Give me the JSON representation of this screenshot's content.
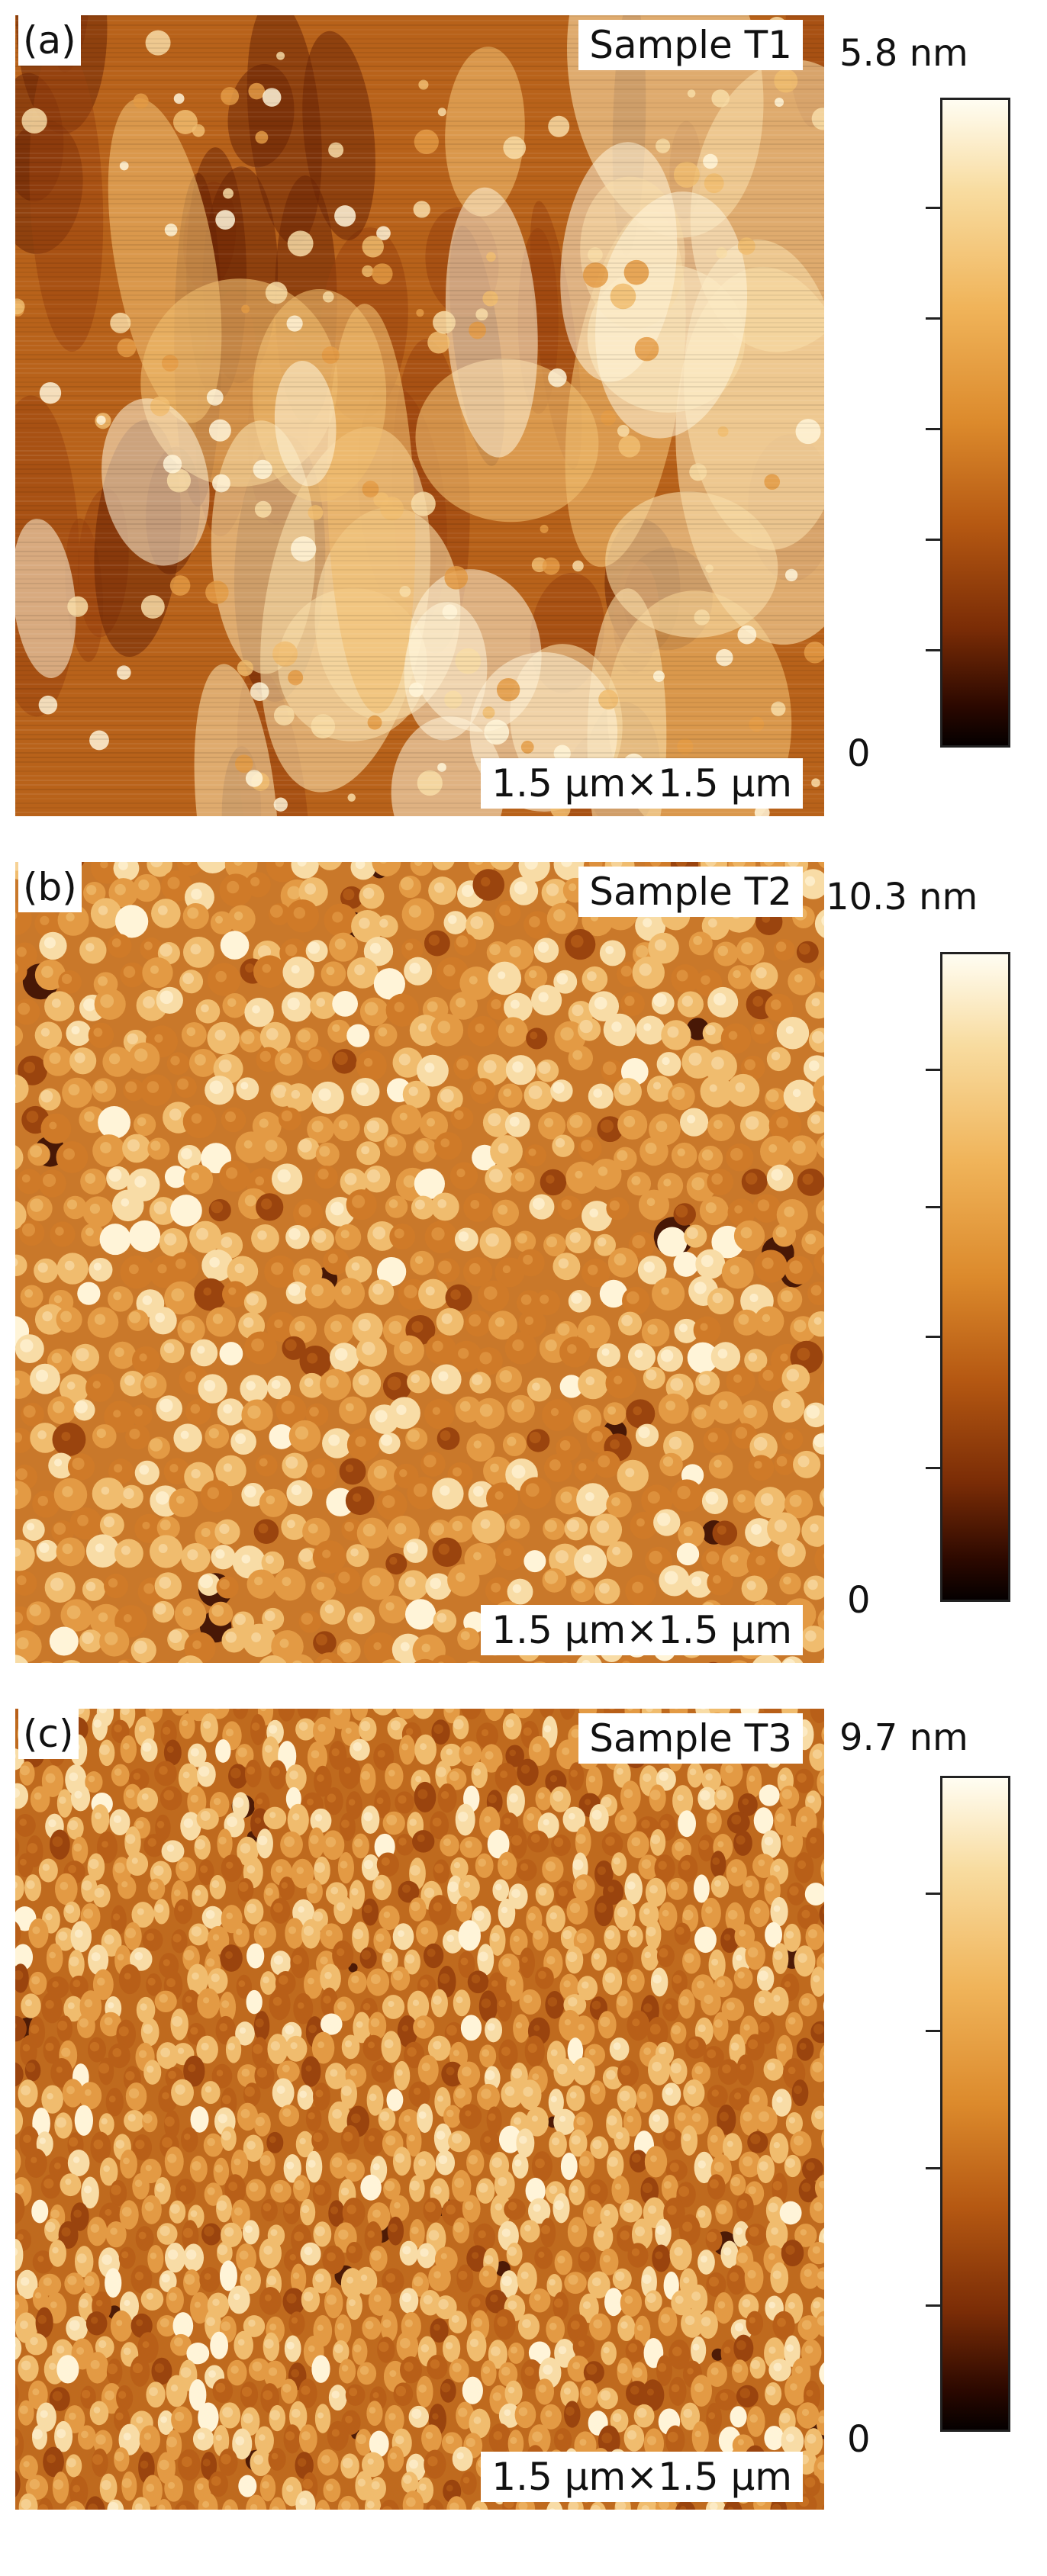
{
  "panels": [
    {
      "letter": "(a)",
      "sample": "Sample T1",
      "scan": "1.5 μm×1.5 μm",
      "scale_max": "5.8 nm",
      "scale_min": "0",
      "texture": "ridged"
    },
    {
      "letter": "(b)",
      "sample": "Sample T2",
      "scan": "1.5 μm×1.5 μm",
      "scale_max": "10.3 nm",
      "scale_min": "0",
      "texture": "granular"
    },
    {
      "letter": "(c)",
      "sample": "Sample T3",
      "scan": "1.5 μm×1.5 μm",
      "scale_max": "9.7 nm",
      "scale_min": "0",
      "texture": "fine-grain"
    }
  ],
  "colors": {
    "afm_dark": "#2b0800",
    "afm_mid": "#c06a1c",
    "afm_light": "#fff7dc"
  }
}
